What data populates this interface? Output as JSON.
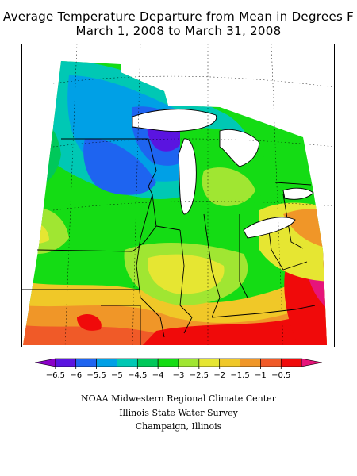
{
  "title": {
    "line1": "Average Temperature Departure from Mean in Degrees F",
    "line2": "March 1, 2008 to March 31, 2008"
  },
  "legend": {
    "colors": [
      "#8a00c8",
      "#5a14e0",
      "#1e64f0",
      "#00a0e6",
      "#00c8b4",
      "#00c85a",
      "#14dc14",
      "#a0e632",
      "#e6e632",
      "#f0c828",
      "#f09628",
      "#f05a28",
      "#f00a0a",
      "#e6147a"
    ],
    "labels": [
      "−6.5",
      "−6",
      "−5.5",
      "−5",
      "−4.5",
      "−4",
      "−3",
      "−2.5",
      "−2",
      "−1.5",
      "−1",
      "−0.5"
    ]
  },
  "credits": {
    "line1": "NOAA Midwestern Regional Climate Center",
    "line2": "Illinois State Water Survey",
    "line3": "Champaign, Illinois"
  }
}
